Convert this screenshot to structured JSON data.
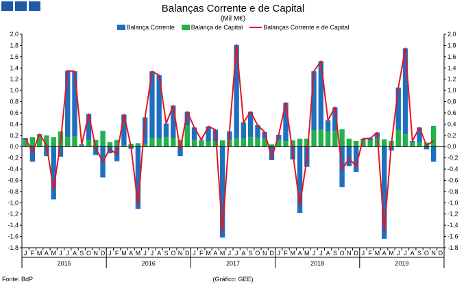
{
  "header": {
    "title": "Balanças Corrente e de Capital",
    "subtitle": "(Mil M€)"
  },
  "footer": {
    "source": "Fonte: BdP",
    "credit": "(Gráfico: GEE)"
  },
  "colors": {
    "current": "#1f6fc1",
    "capital": "#22b14c",
    "total": "#e8131b",
    "logo": "#1f5aa6"
  },
  "chart_data": {
    "type": "bar",
    "title": "Balanças Corrente e de Capital",
    "subtitle": "(Mil M€)",
    "ylim": [
      -1.8,
      2.0
    ],
    "ytick_step": 0.2,
    "ytick_labels": [
      "2,0",
      "1,8",
      "1,6",
      "1,4",
      "1,2",
      "1,0",
      "0,8",
      "0,6",
      "0,4",
      "0,2",
      "0,0",
      "-0,2",
      "-0,4",
      "-0,6",
      "-0,8",
      "-1,0",
      "-1,2",
      "-1,4",
      "-1,6",
      "-1,8"
    ],
    "legend_position": "top",
    "grid": false,
    "month_labels": [
      "J",
      "F",
      "M",
      "A",
      "M",
      "J",
      "J",
      "A",
      "S",
      "O",
      "N",
      "D"
    ],
    "years": [
      "2015",
      "2016",
      "2017",
      "2018",
      "2019"
    ],
    "series": [
      {
        "name": "Balança Corrente",
        "kind": "bar",
        "values": [
          0.03,
          -0.27,
          0.02,
          -0.17,
          -0.94,
          -0.18,
          1.18,
          1.16,
          0.02,
          0.46,
          -0.15,
          -0.55,
          -0.12,
          -0.26,
          0.55,
          -0.04,
          -1.11,
          0.47,
          1.19,
          1.13,
          0.24,
          0.58,
          -0.17,
          0.24,
          0.22,
          0.01,
          0.26,
          0.2,
          -1.62,
          0.15,
          1.66,
          0.29,
          0.45,
          0.22,
          0.12,
          -0.24,
          0.1,
          0.68,
          -0.23,
          -1.18,
          -0.36,
          1.05,
          1.22,
          0.2,
          0.42,
          -0.72,
          -0.35,
          -0.45,
          0.02,
          0.04,
          0.1,
          -1.64,
          -0.07,
          0.75,
          1.53,
          0.02,
          0.26,
          -0.05,
          -0.27
        ]
      },
      {
        "name": "Balança de Capital",
        "kind": "bar",
        "values": [
          0.12,
          0.17,
          0.2,
          0.2,
          0.17,
          0.27,
          0.17,
          0.18,
          0.02,
          0.12,
          0.12,
          0.28,
          0.08,
          0.12,
          0.02,
          0.05,
          0.06,
          0.05,
          0.15,
          0.14,
          0.17,
          0.15,
          0.12,
          0.38,
          0.12,
          0.11,
          0.1,
          0.1,
          0.11,
          0.12,
          0.15,
          0.14,
          0.17,
          0.16,
          0.14,
          0.04,
          0.11,
          0.1,
          0.11,
          0.14,
          0.14,
          0.29,
          0.3,
          0.27,
          0.28,
          0.31,
          0.14,
          0.1,
          0.12,
          0.11,
          0.15,
          0.13,
          0.1,
          0.3,
          0.22,
          0.08,
          0.08,
          0.07,
          0.37
        ]
      },
      {
        "name": "Balanças Corrente e de Capital",
        "kind": "line",
        "values": [
          0.15,
          -0.1,
          0.22,
          0.03,
          -0.77,
          0.09,
          1.35,
          1.34,
          0.04,
          0.58,
          -0.03,
          -0.27,
          -0.04,
          -0.14,
          0.57,
          0.01,
          -1.05,
          0.52,
          1.34,
          1.27,
          0.41,
          0.73,
          -0.05,
          0.62,
          0.34,
          0.12,
          0.36,
          0.3,
          -1.51,
          0.27,
          1.81,
          0.43,
          0.62,
          0.38,
          0.26,
          -0.2,
          0.21,
          0.78,
          -0.12,
          -1.04,
          -0.22,
          1.34,
          1.52,
          0.47,
          0.7,
          -0.41,
          -0.21,
          -0.35,
          0.14,
          0.15,
          0.25,
          -1.51,
          0.03,
          1.05,
          1.75,
          0.1,
          0.34,
          0.02,
          0.1
        ]
      }
    ]
  }
}
